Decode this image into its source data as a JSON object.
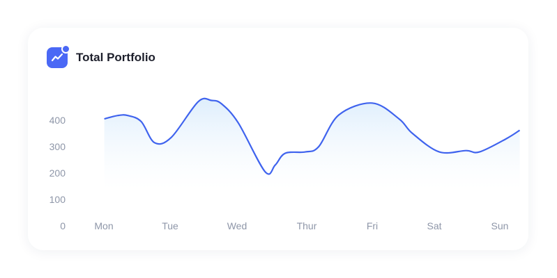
{
  "card": {
    "title": "Total Portfolio",
    "icon": "trending-up-icon"
  },
  "colors": {
    "accent": "#4a68f5",
    "line": "#3f63ee",
    "area_top": "#dcedfc",
    "tick_text": "#8e96a8"
  },
  "chart_data": {
    "type": "area",
    "title": "Total Portfolio",
    "xlabel": "",
    "ylabel": "",
    "categories": [
      "Mon",
      "Tue",
      "Wed",
      "Thur",
      "Fri",
      "Sat",
      "Sun"
    ],
    "y_ticks": [
      0,
      100,
      200,
      300,
      400
    ],
    "ylim": [
      0,
      500
    ],
    "grid": false,
    "x": [
      0.0,
      0.2,
      0.35,
      0.55,
      0.75,
      1.0,
      1.4,
      1.6,
      1.75,
      2.0,
      2.4,
      2.55,
      2.7,
      3.0,
      3.2,
      3.5,
      4.0,
      4.4,
      4.6,
      5.0,
      5.4,
      5.6,
      6.0,
      6.2
    ],
    "values": [
      405,
      418,
      418,
      395,
      315,
      335,
      470,
      475,
      462,
      390,
      205,
      230,
      275,
      280,
      300,
      420,
      465,
      405,
      350,
      280,
      285,
      280,
      330,
      362
    ]
  }
}
